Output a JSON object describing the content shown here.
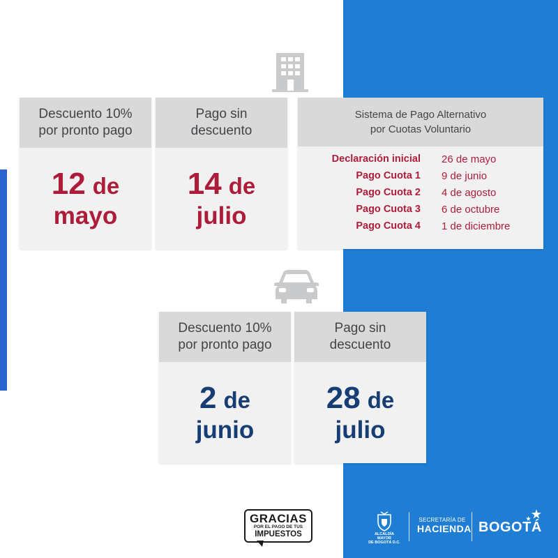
{
  "colors": {
    "blue_panel": "#1f7ed4",
    "accent_red": "#ad1d3a",
    "accent_navy": "#163e74",
    "card_bg": "#f1f1f2",
    "card_head_bg": "#d9d9da"
  },
  "icons": {
    "property": "building-icon",
    "vehicle": "car-icon"
  },
  "property": {
    "discount_card": {
      "header": "Descuento 10%\npor pronto pago",
      "day": "12",
      "de": "de",
      "month": "mayo"
    },
    "no_discount_card": {
      "header": "Pago sin\ndescuento",
      "day": "14",
      "de": "de",
      "month": "julio"
    },
    "alternative": {
      "header": "Sistema de Pago Alternativo\npor Cuotas Voluntario",
      "rows": [
        {
          "label": "Declaración inicial",
          "date": "26 de mayo"
        },
        {
          "label": "Pago Cuota 1",
          "date": "9 de junio"
        },
        {
          "label": "Pago Cuota 2",
          "date": "4 de agosto"
        },
        {
          "label": "Pago Cuota 3",
          "date": "6 de octubre"
        },
        {
          "label": "Pago Cuota 4",
          "date": "1 de diciembre"
        }
      ]
    }
  },
  "vehicle": {
    "discount_card": {
      "header": "Descuento 10%\npor pronto pago",
      "day": "2",
      "de": "de",
      "month": "junio"
    },
    "no_discount_card": {
      "header": "Pago sin\ndescuento",
      "day": "28",
      "de": "de",
      "month": "julio"
    }
  },
  "footer": {
    "gracias": {
      "line1": "GRACIAS",
      "line2": "POR EL PAGO DE TUS",
      "line3": "IMPUESTOS"
    },
    "alcaldia": {
      "line1": "ALCALDÍA MAYOR",
      "line2": "DE BOGOTÁ D.C."
    },
    "secretaria": {
      "line1": "SECRETARÍA DE",
      "line2": "HACIENDA"
    },
    "bogota": "BOGOTÁ"
  }
}
